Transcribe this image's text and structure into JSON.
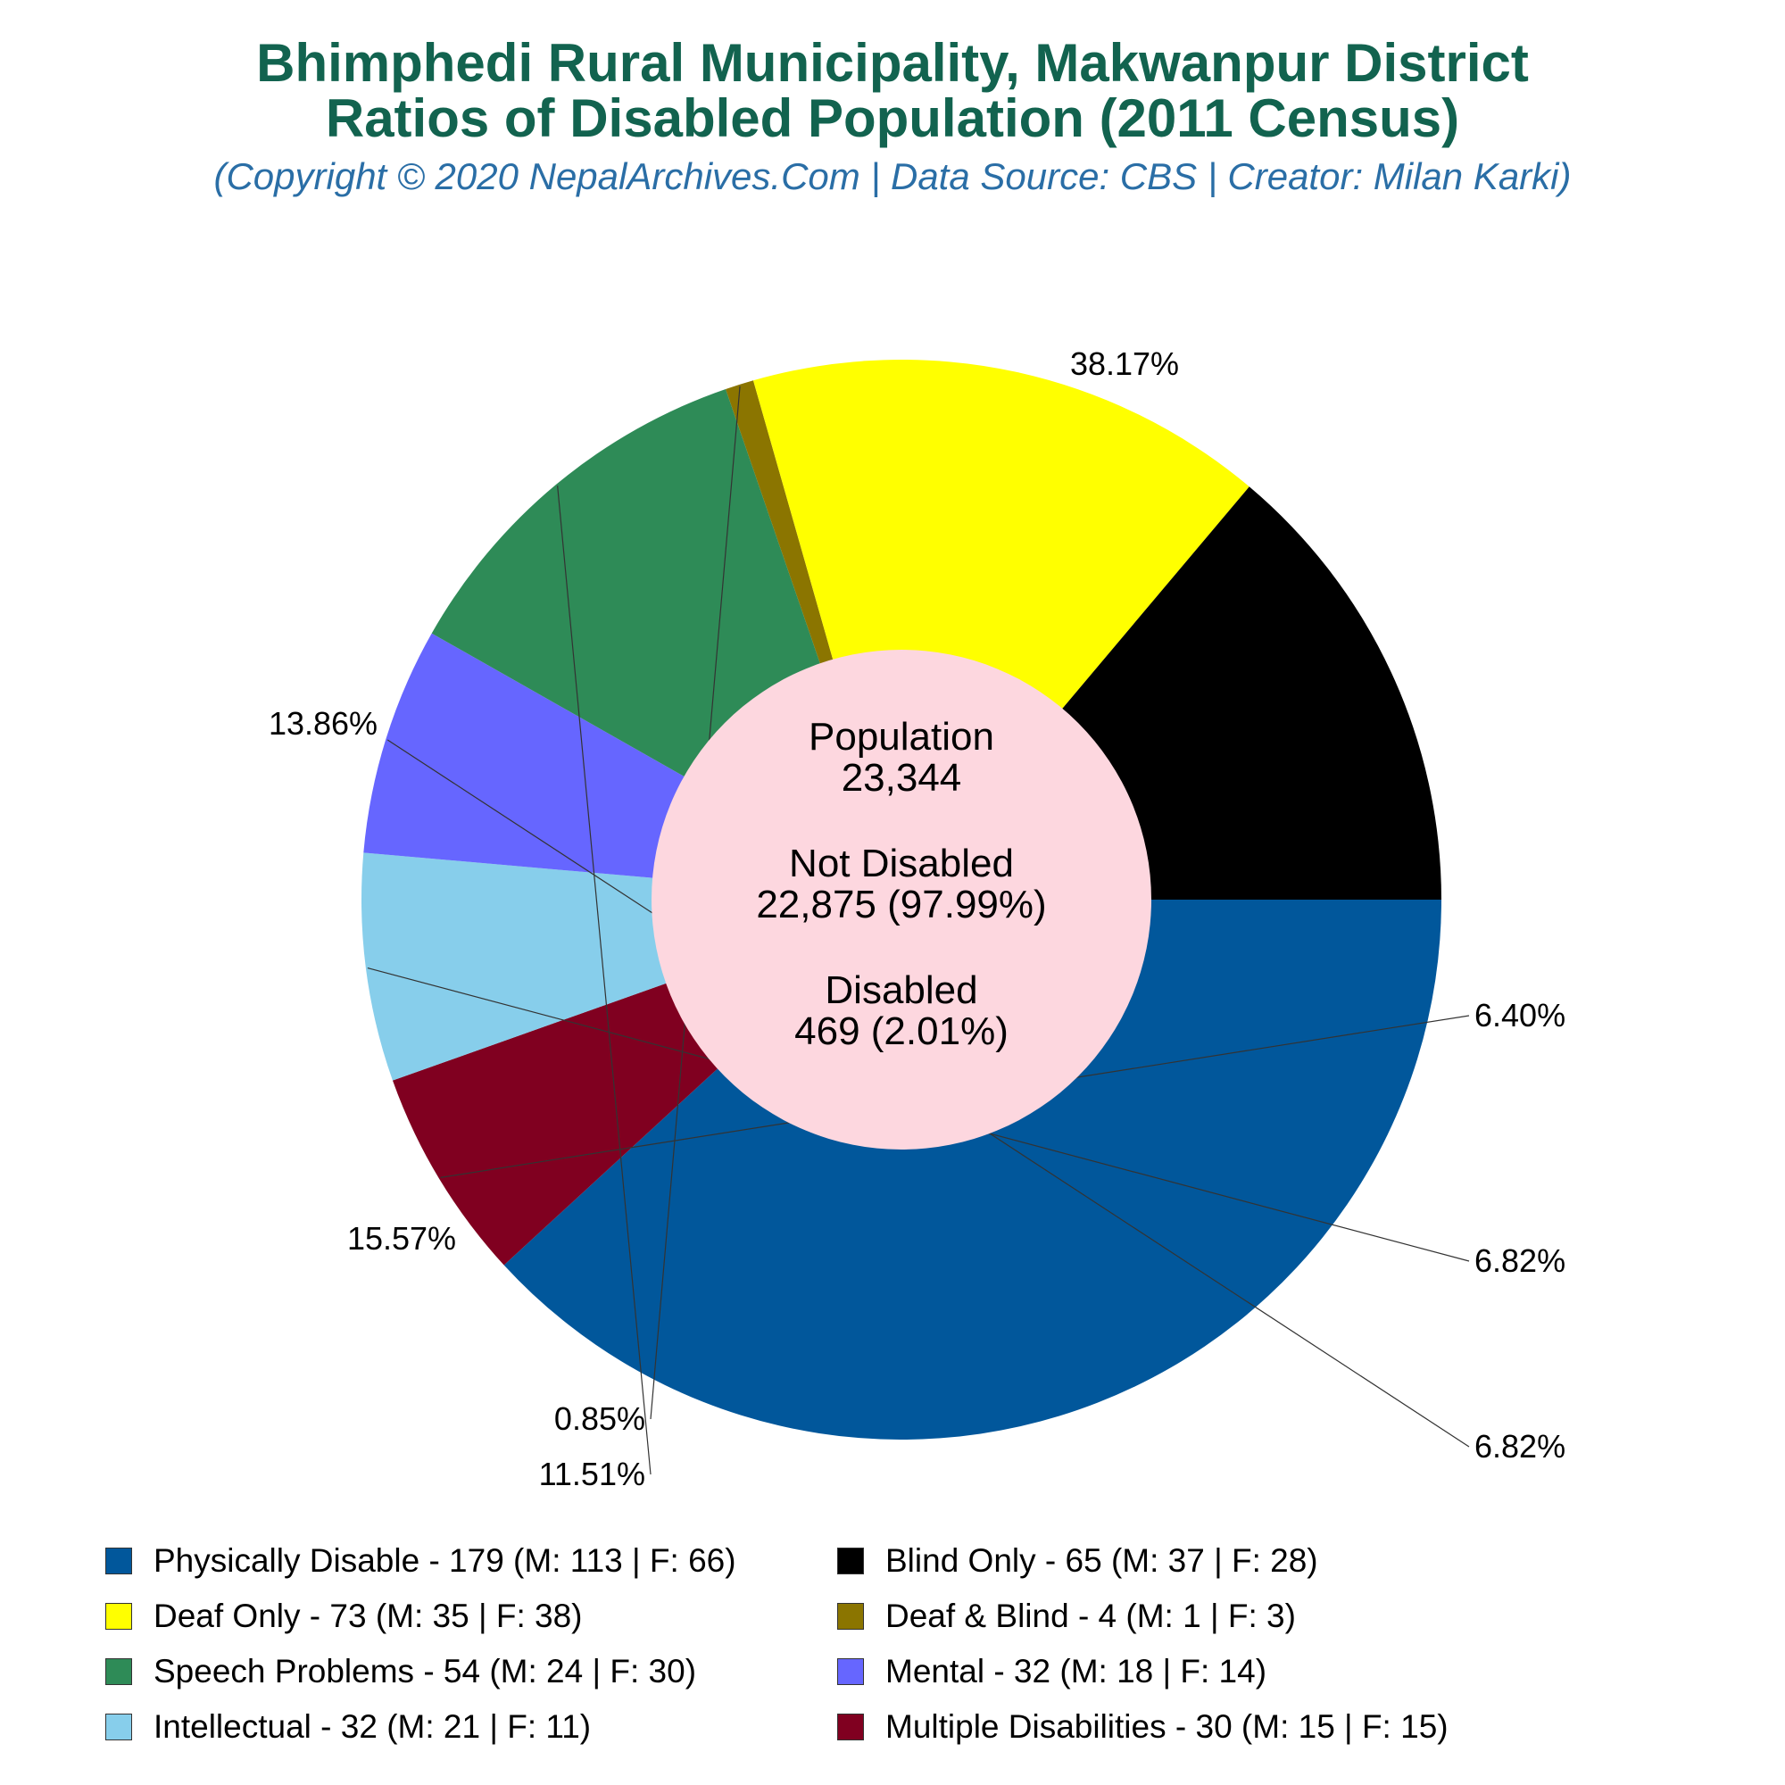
{
  "header": {
    "title_line1": "Bhimphedi Rural Municipality, Makwanpur District",
    "title_line2": "Ratios of Disabled Population (2011 Census)",
    "subtitle": "(Copyright © 2020 NepalArchives.Com | Data Source: CBS | Creator: Milan Karki)"
  },
  "chart_data": {
    "type": "pie",
    "title": "Bhimphedi Rural Municipality, Makwanpur District Ratios of Disabled Population (2011 Census)",
    "slices": [
      {
        "category": "Physically Disable",
        "value": 179,
        "percent_label": "38.17%",
        "color": "#01579b",
        "legend": "Physically Disable - 179 (M: 113 | F: 66)"
      },
      {
        "category": "Multiple Disabilities",
        "value": 30,
        "percent_label": "6.40%",
        "color": "#800020",
        "legend": "Multiple Disabilities - 30 (M: 15 | F: 15)"
      },
      {
        "category": "Intellectual",
        "value": 32,
        "percent_label": "6.82%",
        "color": "#87ceeb",
        "legend": "Intellectual - 32 (M: 21 | F: 11)"
      },
      {
        "category": "Mental",
        "value": 32,
        "percent_label": "6.82%",
        "color": "#6666ff",
        "legend": "Mental - 32 (M: 18 | F: 14)"
      },
      {
        "category": "Speech Problems",
        "value": 54,
        "percent_label": "11.51%",
        "color": "#2e8b57",
        "legend": "Speech Problems - 54 (M: 24 | F: 30)"
      },
      {
        "category": "Deaf & Blind",
        "value": 4,
        "percent_label": "0.85%",
        "color": "#8b7500",
        "legend": "Deaf & Blind - 4 (M: 1 | F: 3)"
      },
      {
        "category": "Deaf Only",
        "value": 73,
        "percent_label": "15.57%",
        "color": "#ffff00",
        "legend": "Deaf Only - 73 (M: 35 | F: 38)"
      },
      {
        "category": "Blind Only",
        "value": 65,
        "percent_label": "13.86%",
        "color": "#000000",
        "legend": "Blind Only - 65 (M: 37 | F: 28)"
      }
    ],
    "legend_order": [
      "Physically Disable",
      "Blind Only",
      "Deaf Only",
      "Deaf & Blind",
      "Speech Problems",
      "Mental",
      "Intellectual",
      "Multiple Disabilities"
    ],
    "center": {
      "line1": "Population",
      "line2": "23,344",
      "line3": "Not Disabled",
      "line4": "22,875 (97.99%)",
      "line5": "Disabled",
      "line6": "469 (2.01%)",
      "color": "#fdd7df"
    }
  }
}
